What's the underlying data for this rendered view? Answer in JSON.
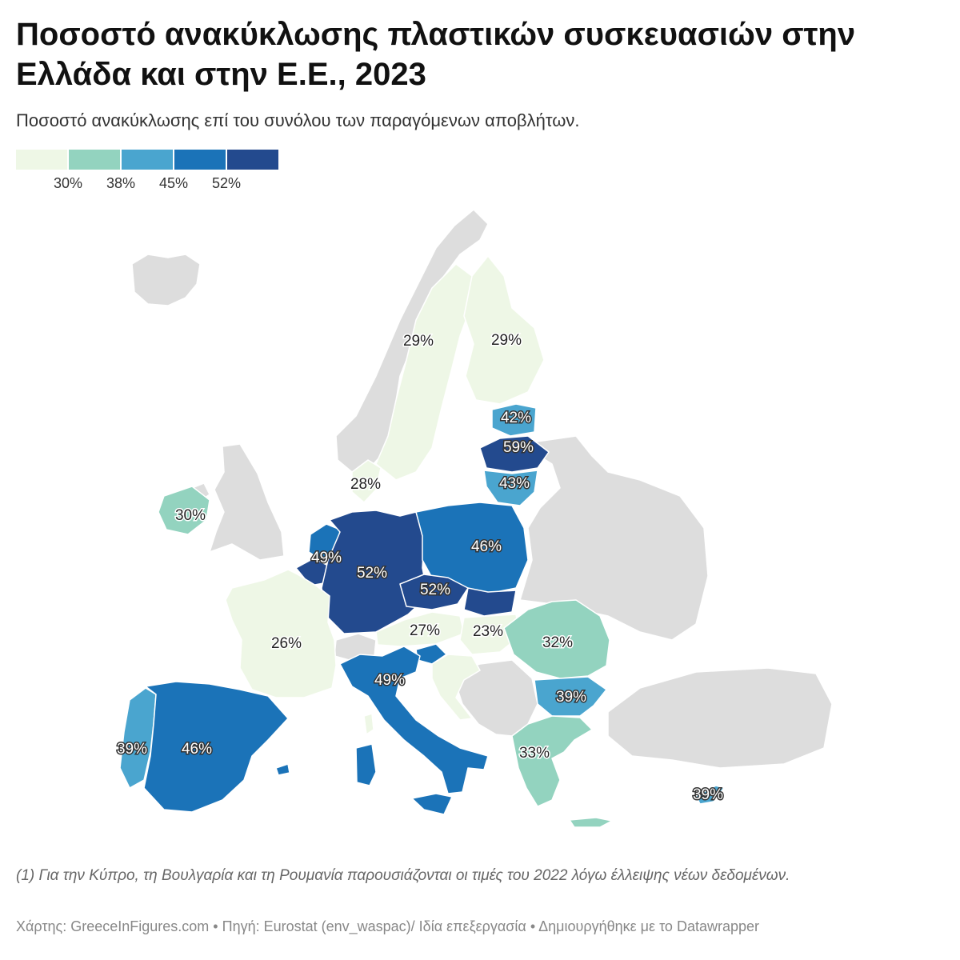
{
  "title": "Ποσοστό ανακύκλωσης πλαστικών συσκευασιών στην Ελλάδα και στην Ε.Ε., 2023",
  "subtitle": "Ποσοστό ανακύκλωσης επί του συνόλου των παραγόμενων αποβλήτων.",
  "legend": {
    "colors": [
      "#eef7e6",
      "#93d3bf",
      "#4aa5cf",
      "#1b73b8",
      "#234a8e"
    ],
    "thresholds": [
      "30%",
      "38%",
      "45%",
      "52%"
    ]
  },
  "map": {
    "no_data_color": "#dddddd",
    "countries": [
      {
        "id": "SE",
        "label": "29%",
        "value": 29
      },
      {
        "id": "FI",
        "label": "29%",
        "value": 29
      },
      {
        "id": "EE",
        "label": "42%",
        "value": 42
      },
      {
        "id": "LV",
        "label": "59%",
        "value": 59
      },
      {
        "id": "LT",
        "label": "43%",
        "value": 43
      },
      {
        "id": "DK",
        "label": "28%",
        "value": 28
      },
      {
        "id": "IE",
        "label": "30%",
        "value": 30
      },
      {
        "id": "NL",
        "label": "49%",
        "value": 49
      },
      {
        "id": "BE",
        "label": "",
        "value": 52
      },
      {
        "id": "DE",
        "label": "52%",
        "value": 52
      },
      {
        "id": "PL",
        "label": "46%",
        "value": 46
      },
      {
        "id": "CZ",
        "label": "52%",
        "value": 52
      },
      {
        "id": "SK",
        "label": "",
        "value": 52
      },
      {
        "id": "AT",
        "label": "27%",
        "value": 27
      },
      {
        "id": "HU",
        "label": "23%",
        "value": 23
      },
      {
        "id": "SI",
        "label": "",
        "value": 49
      },
      {
        "id": "HR",
        "label": "",
        "value": 29
      },
      {
        "id": "FR",
        "label": "26%",
        "value": 26
      },
      {
        "id": "IT",
        "label": "49%",
        "value": 49
      },
      {
        "id": "RO",
        "label": "32%",
        "value": 32
      },
      {
        "id": "BG",
        "label": "39%",
        "value": 39
      },
      {
        "id": "GR",
        "label": "33%",
        "value": 33
      },
      {
        "id": "PT",
        "label": "39%",
        "value": 39
      },
      {
        "id": "ES",
        "label": "46%",
        "value": 46
      },
      {
        "id": "CY",
        "label": "39%",
        "value": 39
      }
    ]
  },
  "note": "(1) Για την Κύπρο, τη Βουλγαρία και τη Ρουμανία παρουσιάζονται οι τιμές του 2022 λόγω έλλειψης νέων δεδομένων.",
  "source": "Χάρτης: GreeceInFigures.com • Πηγή: Eurostat (env_waspac)/ Ιδία επεξεργασία • Δημιουργήθηκε με το Datawrapper"
}
